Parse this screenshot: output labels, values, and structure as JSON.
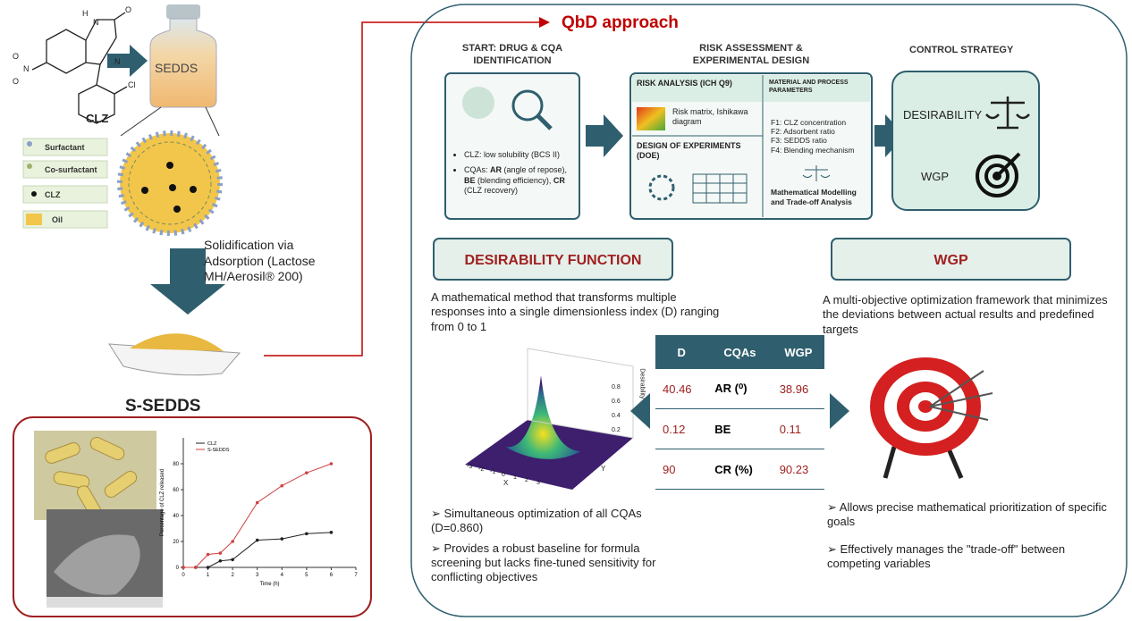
{
  "molecule": {
    "atoms": [
      "H",
      "N",
      "O",
      "O",
      "N",
      "O",
      "N",
      "Cl"
    ],
    "name": "CLZ"
  },
  "vial_label": "SEDDS",
  "legend": [
    "Surfactant",
    "Co-surfactant",
    "CLZ",
    "Oil"
  ],
  "solidification": "Solidification via Adsorption (Lactose MH/Aerosil® 200)",
  "product": "S-SEDDS",
  "release_plot": {
    "y_label": "Percentage of CLZ released",
    "x_label": "Time (h)",
    "xlim": [
      0,
      7
    ],
    "ylim": [
      0,
      100
    ],
    "xticks": [
      0,
      1,
      2,
      3,
      4,
      5,
      6,
      7
    ],
    "yticks": [
      0,
      20,
      40,
      60,
      80
    ],
    "x": [
      0,
      0.5,
      1,
      1.5,
      2,
      3,
      4,
      5,
      6
    ],
    "series": [
      {
        "name": "CLZ",
        "color": "#222222",
        "values": [
          0,
          0,
          0,
          5,
          6,
          21,
          22,
          26,
          27
        ]
      },
      {
        "name": "S-SEDDS",
        "color": "#d04040",
        "values": [
          0,
          0,
          10,
          11,
          20,
          50,
          63,
          73,
          80
        ]
      }
    ]
  },
  "qbd": {
    "title": "QbD approach",
    "start": {
      "heading": "START: DRUG & CQA IDENTIFICATION",
      "bullets": [
        [
          "CLZ: low solubility (BCS II)"
        ],
        [
          "CQAs: ",
          "AR",
          " (angle of repose), ",
          "BE",
          " (blending efficiency), ",
          "CR",
          " (CLZ recovery)"
        ]
      ]
    },
    "risk": {
      "heading": "RISK ASSESSMENT & EXPERIMENTAL DESIGN",
      "analysis": "RISK ANALYSIS (ICH Q9)",
      "matrix": "Risk matrix, Ishikawa diagram",
      "doe": "DESIGN OF EXPERIMENTS (DOE)",
      "params_heading": "MATERIAL AND PROCESS PARAMETERS",
      "params": [
        "F1: CLZ concentration",
        "F2: Adsorbent ratio",
        "F3: SEDDS ratio",
        "F4: Blending mechanism"
      ],
      "modelling": "Mathematical Modelling and Trade-off Analysis"
    },
    "control": {
      "heading": "CONTROL STRATEGY",
      "items": [
        "DESIRABILITY",
        "WGP"
      ]
    },
    "desirability": {
      "heading": "DESIRABILITY FUNCTION",
      "description": "A mathematical method that transforms multiple responses into a single dimensionless index (D) ranging from 0 to 1",
      "surface": {
        "z_label": "Desirability",
        "z_ticks": [
          "0.2",
          "0.4",
          "0.6",
          "0.8"
        ],
        "x_ticks": [
          "-3",
          "-2",
          "-1",
          "0",
          "1",
          "2",
          "3"
        ],
        "x_name": "X",
        "y_name": "Y"
      },
      "bullets": [
        "Simultaneous optimization of all CQAs (D=0.860)",
        "Provides a robust baseline for formula screening but lacks fine-tuned sensitivity for conflicting objectives"
      ]
    },
    "wgp": {
      "heading": "WGP",
      "description": "A multi-objective optimization framework that minimizes the deviations between actual results and predefined targets",
      "bullets": [
        "Allows precise mathematical prioritization of specific goals",
        "Effectively manages the \"trade-off\" between competing variables"
      ]
    },
    "table": {
      "header": [
        "D",
        "CQAs",
        "WGP"
      ],
      "rows": [
        [
          40.46,
          "AR (⁰)",
          38.96
        ],
        [
          0.12,
          "BE",
          0.11
        ],
        [
          90,
          "CR (%)",
          90.23
        ]
      ]
    }
  }
}
